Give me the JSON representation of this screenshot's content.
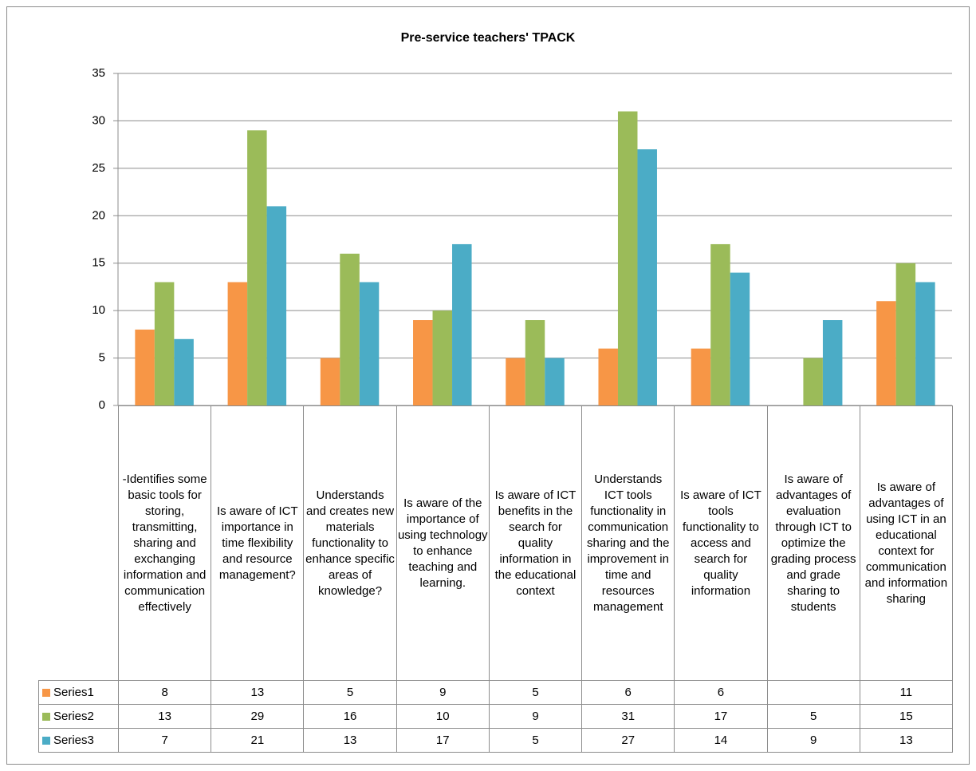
{
  "chart_data": {
    "type": "bar",
    "title": "Pre-service teachers' TPACK",
    "categories": [
      "-Identifies some basic tools for storing, transmitting, sharing and exchanging information and communication effectively",
      "Is aware  of ICT importance in time flexibility and resource management?",
      "Understands and creates new materials functionality to enhance specific areas of knowledge?",
      "Is aware of the importance of using technology to enhance teaching and learning.",
      "Is aware of ICT benefits in the search for quality information in the educational context",
      "Understands ICT tools functionality in communication sharing and the improvement in  time and resources management",
      "Is aware of ICT tools functionality to access and search for quality information",
      "Is aware of advantages of evaluation through ICT to optimize the grading process and grade sharing to students",
      "Is aware of advantages of using ICT in an educational context for communication and information sharing"
    ],
    "series": [
      {
        "name": "Series1",
        "color": "#f79646",
        "values": [
          8,
          13,
          5,
          9,
          5,
          6,
          6,
          null,
          11
        ]
      },
      {
        "name": "Series2",
        "color": "#9bbb59",
        "values": [
          13,
          29,
          16,
          10,
          9,
          31,
          17,
          5,
          15
        ]
      },
      {
        "name": "Series3",
        "color": "#4bacc6",
        "values": [
          7,
          21,
          13,
          17,
          5,
          27,
          14,
          9,
          13
        ]
      }
    ],
    "ylim": [
      0,
      35
    ],
    "yticks": [
      0,
      5,
      10,
      15,
      20,
      25,
      30,
      35
    ],
    "grid": true
  }
}
